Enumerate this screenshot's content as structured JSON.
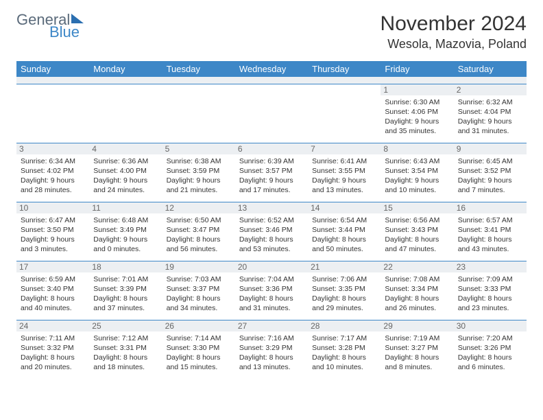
{
  "logo": {
    "text1": "General",
    "text2": "Blue"
  },
  "title": "November 2024",
  "location": "Wesola, Mazovia, Poland",
  "colors": {
    "header_bg": "#3d87c7",
    "daynum_bg": "#eceff2",
    "border": "#3d87c7",
    "text": "#333333",
    "logo_gray": "#5a6a7a",
    "logo_blue": "#3d87c7"
  },
  "typography": {
    "title_fontsize": 30,
    "location_fontsize": 18,
    "header_fontsize": 13,
    "daynum_fontsize": 12,
    "info_fontsize": 10.5
  },
  "day_names": [
    "Sunday",
    "Monday",
    "Tuesday",
    "Wednesday",
    "Thursday",
    "Friday",
    "Saturday"
  ],
  "weeks": [
    [
      null,
      null,
      null,
      null,
      null,
      {
        "n": "1",
        "sr": "Sunrise: 6:30 AM",
        "ss": "Sunset: 4:06 PM",
        "dl": "Daylight: 9 hours and 35 minutes."
      },
      {
        "n": "2",
        "sr": "Sunrise: 6:32 AM",
        "ss": "Sunset: 4:04 PM",
        "dl": "Daylight: 9 hours and 31 minutes."
      }
    ],
    [
      {
        "n": "3",
        "sr": "Sunrise: 6:34 AM",
        "ss": "Sunset: 4:02 PM",
        "dl": "Daylight: 9 hours and 28 minutes."
      },
      {
        "n": "4",
        "sr": "Sunrise: 6:36 AM",
        "ss": "Sunset: 4:00 PM",
        "dl": "Daylight: 9 hours and 24 minutes."
      },
      {
        "n": "5",
        "sr": "Sunrise: 6:38 AM",
        "ss": "Sunset: 3:59 PM",
        "dl": "Daylight: 9 hours and 21 minutes."
      },
      {
        "n": "6",
        "sr": "Sunrise: 6:39 AM",
        "ss": "Sunset: 3:57 PM",
        "dl": "Daylight: 9 hours and 17 minutes."
      },
      {
        "n": "7",
        "sr": "Sunrise: 6:41 AM",
        "ss": "Sunset: 3:55 PM",
        "dl": "Daylight: 9 hours and 13 minutes."
      },
      {
        "n": "8",
        "sr": "Sunrise: 6:43 AM",
        "ss": "Sunset: 3:54 PM",
        "dl": "Daylight: 9 hours and 10 minutes."
      },
      {
        "n": "9",
        "sr": "Sunrise: 6:45 AM",
        "ss": "Sunset: 3:52 PM",
        "dl": "Daylight: 9 hours and 7 minutes."
      }
    ],
    [
      {
        "n": "10",
        "sr": "Sunrise: 6:47 AM",
        "ss": "Sunset: 3:50 PM",
        "dl": "Daylight: 9 hours and 3 minutes."
      },
      {
        "n": "11",
        "sr": "Sunrise: 6:48 AM",
        "ss": "Sunset: 3:49 PM",
        "dl": "Daylight: 9 hours and 0 minutes."
      },
      {
        "n": "12",
        "sr": "Sunrise: 6:50 AM",
        "ss": "Sunset: 3:47 PM",
        "dl": "Daylight: 8 hours and 56 minutes."
      },
      {
        "n": "13",
        "sr": "Sunrise: 6:52 AM",
        "ss": "Sunset: 3:46 PM",
        "dl": "Daylight: 8 hours and 53 minutes."
      },
      {
        "n": "14",
        "sr": "Sunrise: 6:54 AM",
        "ss": "Sunset: 3:44 PM",
        "dl": "Daylight: 8 hours and 50 minutes."
      },
      {
        "n": "15",
        "sr": "Sunrise: 6:56 AM",
        "ss": "Sunset: 3:43 PM",
        "dl": "Daylight: 8 hours and 47 minutes."
      },
      {
        "n": "16",
        "sr": "Sunrise: 6:57 AM",
        "ss": "Sunset: 3:41 PM",
        "dl": "Daylight: 8 hours and 43 minutes."
      }
    ],
    [
      {
        "n": "17",
        "sr": "Sunrise: 6:59 AM",
        "ss": "Sunset: 3:40 PM",
        "dl": "Daylight: 8 hours and 40 minutes."
      },
      {
        "n": "18",
        "sr": "Sunrise: 7:01 AM",
        "ss": "Sunset: 3:39 PM",
        "dl": "Daylight: 8 hours and 37 minutes."
      },
      {
        "n": "19",
        "sr": "Sunrise: 7:03 AM",
        "ss": "Sunset: 3:37 PM",
        "dl": "Daylight: 8 hours and 34 minutes."
      },
      {
        "n": "20",
        "sr": "Sunrise: 7:04 AM",
        "ss": "Sunset: 3:36 PM",
        "dl": "Daylight: 8 hours and 31 minutes."
      },
      {
        "n": "21",
        "sr": "Sunrise: 7:06 AM",
        "ss": "Sunset: 3:35 PM",
        "dl": "Daylight: 8 hours and 29 minutes."
      },
      {
        "n": "22",
        "sr": "Sunrise: 7:08 AM",
        "ss": "Sunset: 3:34 PM",
        "dl": "Daylight: 8 hours and 26 minutes."
      },
      {
        "n": "23",
        "sr": "Sunrise: 7:09 AM",
        "ss": "Sunset: 3:33 PM",
        "dl": "Daylight: 8 hours and 23 minutes."
      }
    ],
    [
      {
        "n": "24",
        "sr": "Sunrise: 7:11 AM",
        "ss": "Sunset: 3:32 PM",
        "dl": "Daylight: 8 hours and 20 minutes."
      },
      {
        "n": "25",
        "sr": "Sunrise: 7:12 AM",
        "ss": "Sunset: 3:31 PM",
        "dl": "Daylight: 8 hours and 18 minutes."
      },
      {
        "n": "26",
        "sr": "Sunrise: 7:14 AM",
        "ss": "Sunset: 3:30 PM",
        "dl": "Daylight: 8 hours and 15 minutes."
      },
      {
        "n": "27",
        "sr": "Sunrise: 7:16 AM",
        "ss": "Sunset: 3:29 PM",
        "dl": "Daylight: 8 hours and 13 minutes."
      },
      {
        "n": "28",
        "sr": "Sunrise: 7:17 AM",
        "ss": "Sunset: 3:28 PM",
        "dl": "Daylight: 8 hours and 10 minutes."
      },
      {
        "n": "29",
        "sr": "Sunrise: 7:19 AM",
        "ss": "Sunset: 3:27 PM",
        "dl": "Daylight: 8 hours and 8 minutes."
      },
      {
        "n": "30",
        "sr": "Sunrise: 7:20 AM",
        "ss": "Sunset: 3:26 PM",
        "dl": "Daylight: 8 hours and 6 minutes."
      }
    ]
  ]
}
